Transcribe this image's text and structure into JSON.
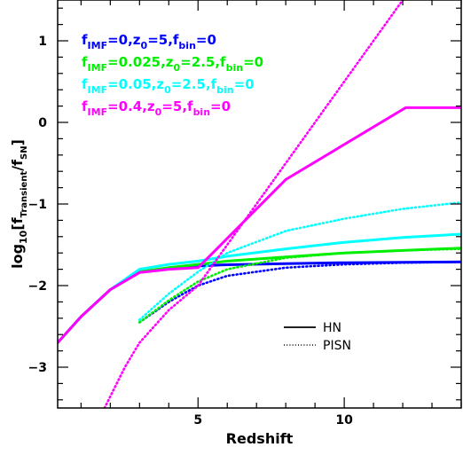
{
  "chart_data": {
    "type": "line",
    "xlabel": "Redshift",
    "ylabel": {
      "prefix": "log",
      "prefix_sub": "10",
      "open": "[f",
      "num_sub": "Transient",
      "slash": "/f",
      "den_sub": "SN",
      "close": "]"
    },
    "xlim": [
      0.2,
      14.0
    ],
    "ylim": [
      -3.5,
      1.5
    ],
    "xticks": [
      5,
      10
    ],
    "yticks": [
      1,
      0,
      -1,
      -2,
      -3
    ],
    "ytick_labels": [
      "1",
      "0",
      "−1",
      "−2",
      "−3"
    ],
    "legend": [
      {
        "color": "#0000ff",
        "parts": [
          [
            "f",
            ""
          ],
          [
            "IMF",
            "sub"
          ],
          [
            "=0,z",
            ""
          ],
          [
            "0",
            "sub"
          ],
          [
            "=5,f",
            ""
          ],
          [
            "bin",
            "sub"
          ],
          [
            "=0",
            ""
          ]
        ]
      },
      {
        "color": "#00ee00",
        "parts": [
          [
            "f",
            ""
          ],
          [
            "IMF",
            "sub"
          ],
          [
            "=0.025,z",
            ""
          ],
          [
            "0",
            "sub"
          ],
          [
            "=2.5,f",
            ""
          ],
          [
            "bin",
            "sub"
          ],
          [
            "=0",
            ""
          ]
        ]
      },
      {
        "color": "#00ffff",
        "parts": [
          [
            "f",
            ""
          ],
          [
            "IMF",
            "sub"
          ],
          [
            "=0.05,z",
            ""
          ],
          [
            "0",
            "sub"
          ],
          [
            "=2.5,f",
            ""
          ],
          [
            "bin",
            "sub"
          ],
          [
            "=0",
            ""
          ]
        ]
      },
      {
        "color": "#ff00ff",
        "parts": [
          [
            "f",
            ""
          ],
          [
            "IMF",
            "sub"
          ],
          [
            "=0.4,z",
            ""
          ],
          [
            "0",
            "sub"
          ],
          [
            "=5,f",
            ""
          ],
          [
            "bin",
            "sub"
          ],
          [
            "=0",
            ""
          ]
        ]
      }
    ],
    "style_legend": [
      {
        "label": "HN",
        "dash": "solid"
      },
      {
        "label": "PISN",
        "dash": "dotted"
      }
    ],
    "series": [
      {
        "color": "#0000ff",
        "dash": "solid",
        "x": [
          0.2,
          1.0,
          2.0,
          3.0,
          4.0,
          5.0,
          6.0,
          8.0,
          10.0,
          12.0,
          14.0
        ],
        "y": [
          -2.7,
          -2.38,
          -2.05,
          -1.83,
          -1.79,
          -1.76,
          -1.745,
          -1.73,
          -1.72,
          -1.715,
          -1.71
        ]
      },
      {
        "color": "#00ee00",
        "dash": "solid",
        "x": [
          0.2,
          1.0,
          2.0,
          3.0,
          4.0,
          5.0,
          6.0,
          8.0,
          10.0,
          12.0,
          14.0
        ],
        "y": [
          -2.7,
          -2.38,
          -2.05,
          -1.83,
          -1.78,
          -1.74,
          -1.7,
          -1.65,
          -1.6,
          -1.57,
          -1.54
        ]
      },
      {
        "color": "#00ffff",
        "dash": "solid",
        "x": [
          0.2,
          1.0,
          2.0,
          3.0,
          4.0,
          5.0,
          6.0,
          8.0,
          10.0,
          12.0,
          14.0
        ],
        "y": [
          -2.7,
          -2.38,
          -2.05,
          -1.8,
          -1.74,
          -1.7,
          -1.64,
          -1.55,
          -1.47,
          -1.41,
          -1.37
        ]
      },
      {
        "color": "#ff00ff",
        "dash": "solid",
        "x": [
          0.2,
          1.0,
          2.0,
          3.0,
          4.0,
          5.0,
          8.0,
          12.1,
          14.0
        ],
        "y": [
          -2.7,
          -2.38,
          -2.05,
          -1.84,
          -1.8,
          -1.78,
          -0.7,
          0.18,
          0.18
        ]
      },
      {
        "color": "#0000ff",
        "dash": "dotted",
        "x": [
          3.0,
          4.0,
          5.0,
          6.0,
          8.0,
          10.0,
          12.0,
          14.0
        ],
        "y": [
          -2.45,
          -2.2,
          -2.0,
          -1.88,
          -1.78,
          -1.74,
          -1.72,
          -1.71
        ]
      },
      {
        "color": "#00ee00",
        "dash": "dotted",
        "x": [
          3.0,
          4.0,
          5.0,
          6.0,
          8.0,
          10.0,
          12.0,
          14.0
        ],
        "y": [
          -2.45,
          -2.18,
          -1.95,
          -1.8,
          -1.66,
          -1.6,
          -1.57,
          -1.55
        ]
      },
      {
        "color": "#00ffff",
        "dash": "dotted",
        "x": [
          3.0,
          4.0,
          5.0,
          6.0,
          8.0,
          10.0,
          12.0,
          14.0
        ],
        "y": [
          -2.42,
          -2.1,
          -1.83,
          -1.6,
          -1.33,
          -1.18,
          -1.06,
          -0.98
        ]
      },
      {
        "color": "#ff00ff",
        "dash": "dotted",
        "x": [
          1.8,
          2.5,
          3.0,
          4.0,
          5.0,
          6.0,
          8.0,
          10.0,
          12.0
        ],
        "y": [
          -3.5,
          -3.0,
          -2.7,
          -2.3,
          -2.0,
          -1.5,
          -0.5,
          0.5,
          1.5
        ]
      }
    ]
  }
}
